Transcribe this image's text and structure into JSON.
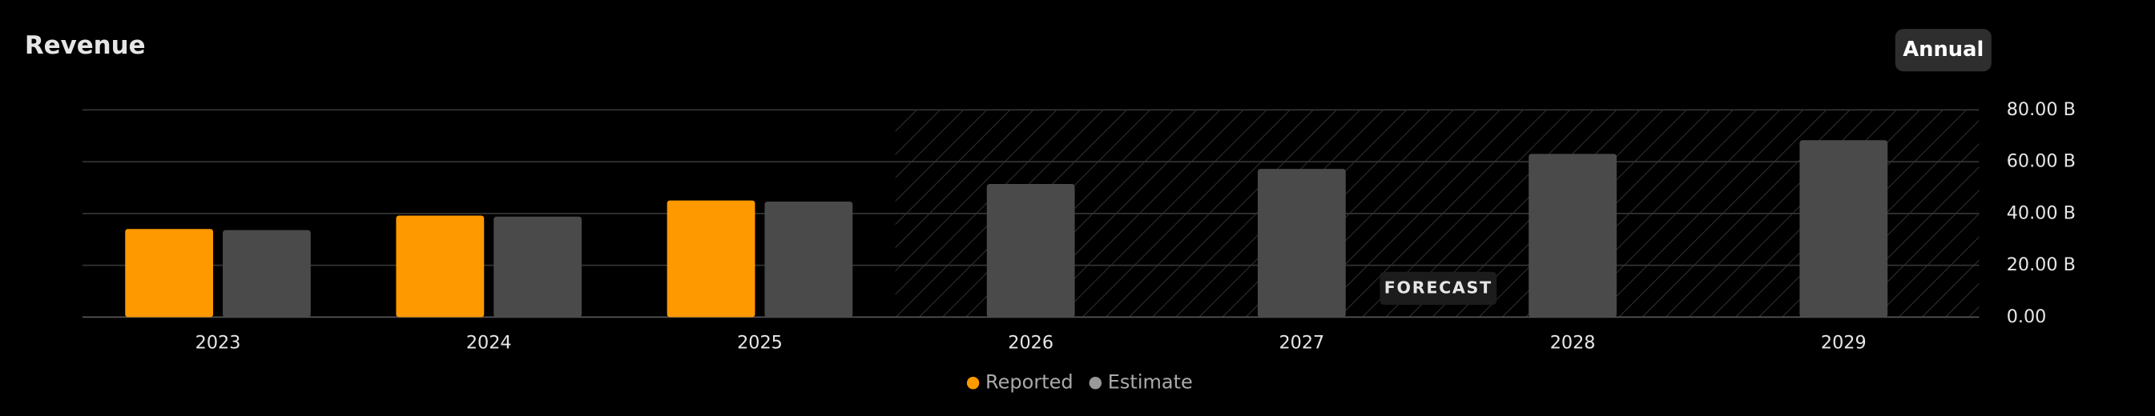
{
  "period_selector": "Annual",
  "chart_data": {
    "type": "bar",
    "title": "Revenue",
    "categories": [
      "2023",
      "2024",
      "2025",
      "2026",
      "2027",
      "2028",
      "2029"
    ],
    "series": [
      {
        "name": "Reported",
        "color": "#ff9900",
        "values": [
          34,
          39.2,
          45,
          null,
          null,
          null,
          null
        ]
      },
      {
        "name": "Estimate",
        "color": "#4a4a4a",
        "values": [
          33.6,
          38.8,
          44.6,
          51.4,
          57.2,
          63,
          68.3
        ]
      }
    ],
    "ylim": [
      0,
      80
    ],
    "yticks": [
      {
        "value": 0,
        "label": "0.00"
      },
      {
        "value": 20,
        "label": "20.00 B"
      },
      {
        "value": 40,
        "label": "40.00 B"
      },
      {
        "value": 60,
        "label": "60.00 B"
      },
      {
        "value": 80,
        "label": "80.00 B"
      }
    ],
    "grid": true,
    "forecast_label": "FORECAST"
  }
}
